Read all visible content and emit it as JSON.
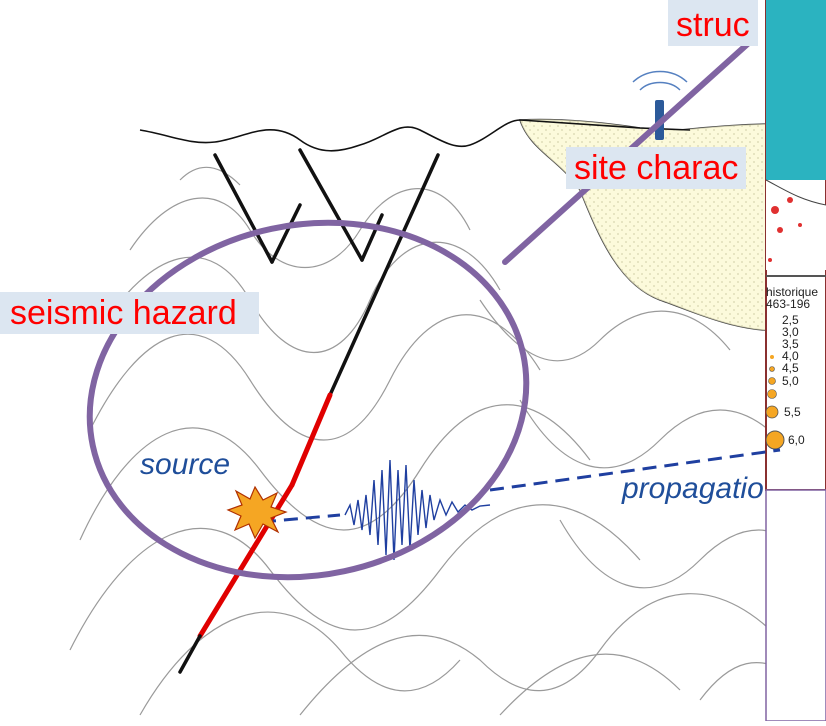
{
  "labels": {
    "structure": "struc",
    "site": "site charac",
    "hazard": "seismic hazard",
    "source": "source",
    "propagation": "propagatio"
  },
  "map_legend": {
    "title_line1": "historique",
    "title_line2": "463-196",
    "entries": [
      "2,5",
      "3,0",
      "3,5",
      "4,0",
      "4,5",
      "5,0",
      "5,5",
      "6,0"
    ]
  },
  "colors": {
    "tag_text": "#ff0000",
    "tag_bg": "#dce6f1",
    "ellipse": "#8064a2",
    "wave": "#1f3fa0",
    "sediment_fill": "#fbf8cf",
    "map_sea": "#2bb3c0",
    "quake_marker": "#f5a623"
  }
}
